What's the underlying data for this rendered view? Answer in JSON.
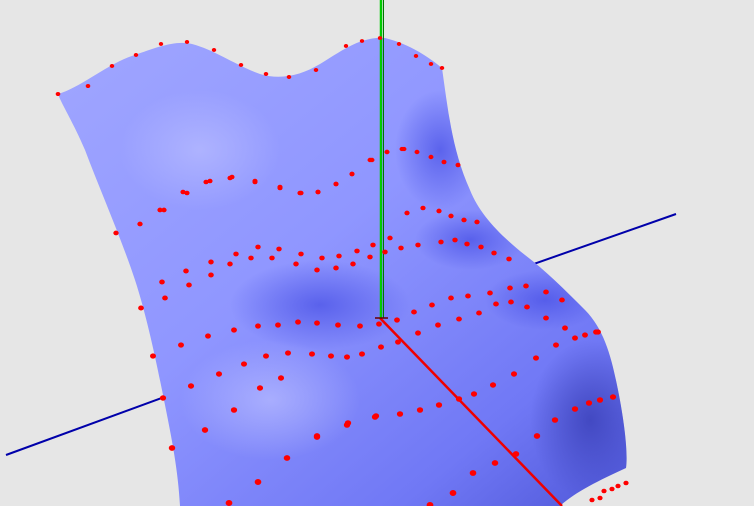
{
  "scene": {
    "background_color": "#e6e6e6",
    "surface_color": "#8f96ff",
    "surface_shadow_color": "#4f57e8",
    "surface_highlight_color": "#a8aeff",
    "control_point_color": "#ff0000",
    "axes": [
      {
        "name": "x-axis",
        "color": "#ff0000"
      },
      {
        "name": "y-axis",
        "color": "#00cc00"
      },
      {
        "name": "z-axis",
        "color": "#0000aa"
      }
    ],
    "control_point_rows": 9
  }
}
